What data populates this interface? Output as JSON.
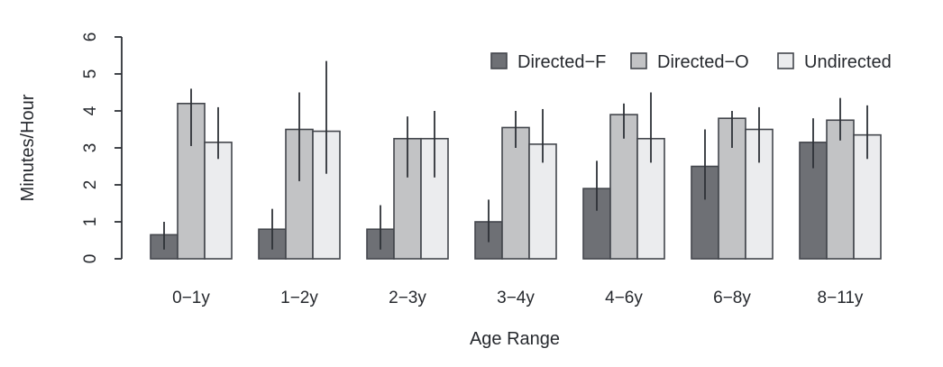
{
  "chart_data": {
    "type": "bar",
    "title": "",
    "xlabel": "Age Range",
    "ylabel": "Minutes/Hour",
    "ylim": [
      0,
      6
    ],
    "yticks": [
      0,
      1,
      2,
      3,
      4,
      5,
      6
    ],
    "grid": false,
    "legend_position": "top-right-inside",
    "categories": [
      "0−1y",
      "1−2y",
      "2−3y",
      "3−4y",
      "4−6y",
      "6−8y",
      "8−11y"
    ],
    "series": [
      {
        "name": "Directed−F",
        "color": "#6e7075",
        "values": [
          0.65,
          0.8,
          0.8,
          1.0,
          1.9,
          2.5,
          3.15
        ],
        "error_low": [
          0.25,
          0.25,
          0.25,
          0.45,
          1.3,
          1.6,
          2.45
        ],
        "error_high": [
          1.0,
          1.35,
          1.45,
          1.6,
          2.65,
          3.5,
          3.8
        ]
      },
      {
        "name": "Directed−O",
        "color": "#c2c3c5",
        "values": [
          4.2,
          3.5,
          3.25,
          3.55,
          3.9,
          3.8,
          3.75
        ],
        "error_low": [
          3.05,
          2.1,
          2.2,
          3.0,
          3.25,
          3.0,
          3.2
        ],
        "error_high": [
          4.6,
          4.5,
          3.85,
          4.0,
          4.2,
          4.0,
          4.35
        ]
      },
      {
        "name": "Undirected",
        "color": "#ebecee",
        "values": [
          3.15,
          3.45,
          3.25,
          3.1,
          3.25,
          3.5,
          3.35
        ],
        "error_low": [
          2.7,
          2.3,
          2.2,
          2.6,
          2.6,
          2.6,
          2.7
        ],
        "error_high": [
          4.1,
          5.35,
          4.0,
          4.05,
          4.5,
          4.1,
          4.15
        ]
      }
    ]
  },
  "colors": {
    "background": "#ffffff",
    "bar_border": "#43464c",
    "axis_line": "#2e3137",
    "error_bar": "#2e3137",
    "text": "#26292e"
  }
}
